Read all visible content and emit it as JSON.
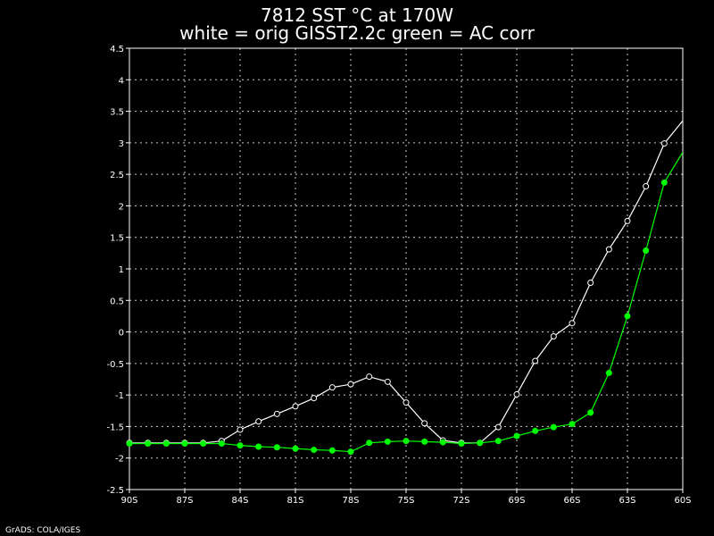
{
  "title_line1": "7812 SST °C at 170W",
  "title_line2": "white = orig GISST2.2c green = AC corr",
  "footer": "GrADS: COLA/IGES",
  "chart_data": {
    "type": "line",
    "x": [
      -90,
      -89,
      -88,
      -87,
      -86,
      -85,
      -84,
      -83,
      -82,
      -81,
      -80,
      -79,
      -78,
      -77,
      -76,
      -75,
      -74,
      -73,
      -72,
      -71,
      -70,
      -69,
      -68,
      -67,
      -66,
      -65,
      -64,
      -63,
      -62,
      -61,
      -60
    ],
    "xlim": [
      -90,
      -60
    ],
    "ylim": [
      -2.5,
      4.5
    ],
    "x_ticks": [
      -90,
      -87,
      -84,
      -81,
      -78,
      -75,
      -72,
      -69,
      -66,
      -63,
      -60
    ],
    "x_tick_labels": [
      "90S",
      "87S",
      "84S",
      "81S",
      "78S",
      "75S",
      "72S",
      "69S",
      "66S",
      "63S",
      "60S"
    ],
    "y_ticks": [
      -2.5,
      -2,
      -1.5,
      -1,
      -0.5,
      0,
      0.5,
      1,
      1.5,
      2,
      2.5,
      3,
      3.5,
      4,
      4.5
    ],
    "y_tick_labels": [
      "-2.5",
      "-2",
      "-1.5",
      "-1",
      "-0.5",
      "0",
      "0.5",
      "1",
      "1.5",
      "2",
      "2.5",
      "3",
      "3.5",
      "4",
      "4.5"
    ],
    "grid": true,
    "series": [
      {
        "color": "#ffffff",
        "marker": "open-circle",
        "values": [
          -1.76,
          -1.76,
          -1.76,
          -1.76,
          -1.76,
          -1.73,
          -1.55,
          -1.42,
          -1.3,
          -1.18,
          -1.05,
          -0.88,
          -0.83,
          -0.71,
          -0.79,
          -1.12,
          -1.45,
          -1.72,
          -1.76,
          -1.76,
          -1.51,
          -0.99,
          -0.46,
          -0.07,
          0.14,
          0.78,
          1.31,
          1.76,
          2.31,
          2.99,
          3.35
        ]
      },
      {
        "color": "#00ff00",
        "marker": "filled-circle",
        "values": [
          -1.77,
          -1.77,
          -1.77,
          -1.77,
          -1.77,
          -1.77,
          -1.8,
          -1.82,
          -1.83,
          -1.85,
          -1.87,
          -1.88,
          -1.9,
          -1.76,
          -1.74,
          -1.73,
          -1.74,
          -1.75,
          -1.77,
          -1.76,
          -1.73,
          -1.65,
          -1.57,
          -1.51,
          -1.46,
          -1.28,
          -0.65,
          0.25,
          1.29,
          2.37,
          2.85
        ]
      }
    ]
  }
}
